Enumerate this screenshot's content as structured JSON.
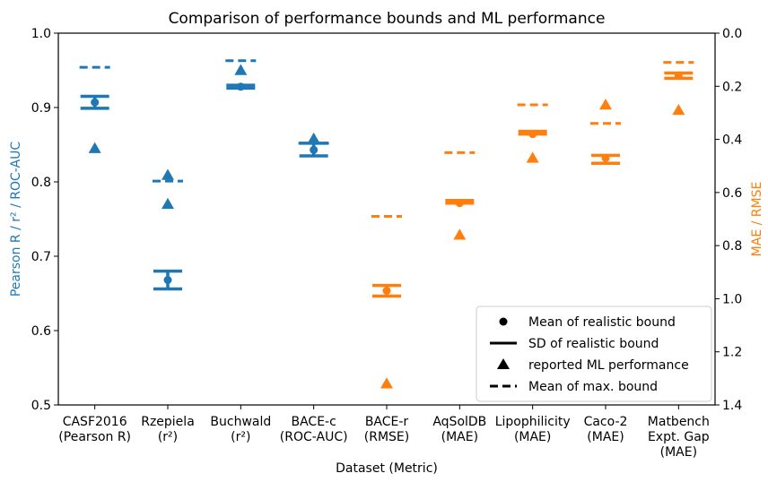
{
  "chart_data": {
    "type": "scatter",
    "title": "Comparison of performance bounds and ML performance",
    "xlabel": "Dataset (Metric)",
    "ylabel_left": "Pearson R / r² / ROC-AUC",
    "ylabel_right": "MAE / RMSE",
    "ylim_left": [
      0.5,
      1.0
    ],
    "ylim_right_inverted": [
      0.0,
      1.4
    ],
    "left_ticks": [
      "0.5",
      "0.6",
      "0.7",
      "0.8",
      "0.9",
      "1.0"
    ],
    "right_ticks": [
      "0.0",
      "0.2",
      "0.4",
      "0.6",
      "0.8",
      "1.0",
      "1.2",
      "1.4"
    ],
    "colors": {
      "left_axis": "#1f77b4",
      "right_axis": "#ff7f0e"
    },
    "categories": [
      {
        "name": "CASF2016",
        "metric": "(Pearson R)",
        "axis": "left",
        "mean_realistic": 0.907,
        "sd_lower": 0.899,
        "sd_upper": 0.915,
        "ml": 0.845,
        "max_bound": 0.954
      },
      {
        "name": "Rzepiela",
        "metric": "(r²)",
        "axis": "left",
        "mean_realistic": 0.668,
        "sd_lower": 0.656,
        "sd_upper": 0.68,
        "ml": [
          0.809,
          0.77
        ],
        "max_bound": 0.801
      },
      {
        "name": "Buchwald",
        "metric": "(r²)",
        "axis": "left",
        "mean_realistic": 0.928,
        "sd_lower": 0.926,
        "sd_upper": 0.93,
        "ml": 0.95,
        "max_bound": 0.963
      },
      {
        "name": "BACE-c",
        "metric": "(ROC-AUC)",
        "axis": "left",
        "mean_realistic": 0.843,
        "sd_lower": 0.835,
        "sd_upper": 0.852,
        "ml": 0.858,
        "max_bound": 0.852
      },
      {
        "name": "BACE-r",
        "metric": "(RMSE)",
        "axis": "right",
        "mean_realistic": 0.97,
        "sd_lower": 0.95,
        "sd_upper": 0.99,
        "ml": 1.32,
        "max_bound": 0.69
      },
      {
        "name": "AqSolDB",
        "metric": "(MAE)",
        "axis": "right",
        "mean_realistic": 0.64,
        "sd_lower": 0.63,
        "sd_upper": 0.64,
        "ml": 0.76,
        "max_bound": 0.45
      },
      {
        "name": "Lipophilicity",
        "metric": "(MAE)",
        "axis": "right",
        "mean_realistic": 0.38,
        "sd_lower": 0.37,
        "sd_upper": 0.38,
        "ml": 0.47,
        "max_bound": 0.27
      },
      {
        "name": "Caco-2",
        "metric": "(MAE)",
        "axis": "right",
        "mean_realistic": 0.47,
        "sd_lower": 0.46,
        "sd_upper": 0.49,
        "ml": 0.27,
        "max_bound": 0.34
      },
      {
        "name": "Matbench\nExpt. Gap",
        "metric": "(MAE)",
        "axis": "right",
        "mean_realistic": 0.16,
        "sd_lower": 0.15,
        "sd_upper": 0.17,
        "ml": 0.29,
        "max_bound": 0.11
      }
    ],
    "legend": {
      "placement": "bottom-right",
      "entries": [
        "Mean of realistic bound",
        "SD of realistic bound",
        "reported ML performance",
        "Mean of max. bound"
      ]
    },
    "grid": false
  }
}
